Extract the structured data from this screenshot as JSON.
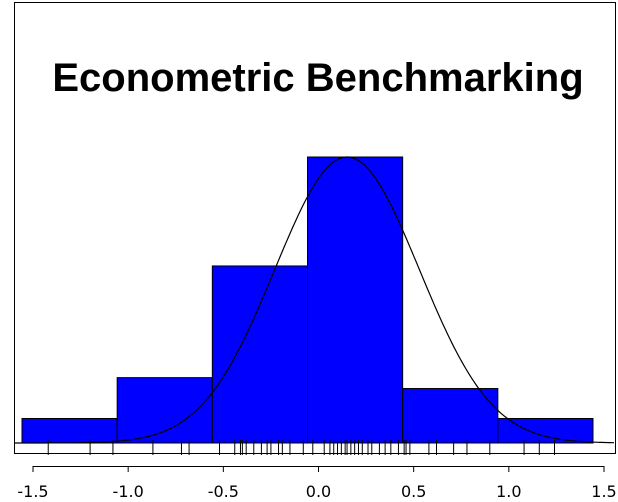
{
  "chart_data": {
    "type": "bar",
    "title": "Econometric Benchmarking",
    "xlabel": "",
    "ylabel": "",
    "xlim": [
      -1.5,
      1.5
    ],
    "x_ticks": [
      "-1.5",
      "-1.0",
      "-0.5",
      "0.0",
      "0.5",
      "1.0",
      "1.5"
    ],
    "bins": [
      {
        "from": -1.5,
        "to": -1.0,
        "density": 0.09
      },
      {
        "from": -1.0,
        "to": -0.5,
        "density": 0.24
      },
      {
        "from": -0.5,
        "to": 0.0,
        "density": 0.65
      },
      {
        "from": 0.0,
        "to": 0.5,
        "density": 1.05
      },
      {
        "from": 0.5,
        "to": 1.0,
        "density": 0.2
      },
      {
        "from": 1.0,
        "to": 1.5,
        "density": 0.09
      }
    ],
    "density_curve": {
      "type": "normal",
      "mean": 0.15,
      "sd": 0.38
    },
    "rug": [
      -1.42,
      -1.2,
      -1.08,
      -0.87,
      -0.72,
      -0.68,
      -0.52,
      -0.44,
      -0.41,
      -0.4,
      -0.38,
      -0.34,
      -0.3,
      -0.27,
      -0.25,
      -0.21,
      -0.19,
      -0.15,
      -0.08,
      -0.03,
      0.03,
      0.06,
      0.08,
      0.1,
      0.12,
      0.14,
      0.15,
      0.17,
      0.19,
      0.21,
      0.23,
      0.26,
      0.28,
      0.32,
      0.35,
      0.38,
      0.42,
      0.45,
      0.46,
      0.48,
      0.58,
      0.62,
      0.71,
      0.78,
      0.9,
      1.08,
      1.16,
      1.24
    ],
    "ylim": [
      0,
      1.05
    ],
    "grid": false,
    "legend": "none",
    "colors": {
      "bar_fill": "#0000ff",
      "bar_stroke": "#000000",
      "curve": "#000000",
      "frame": "#000000"
    }
  }
}
